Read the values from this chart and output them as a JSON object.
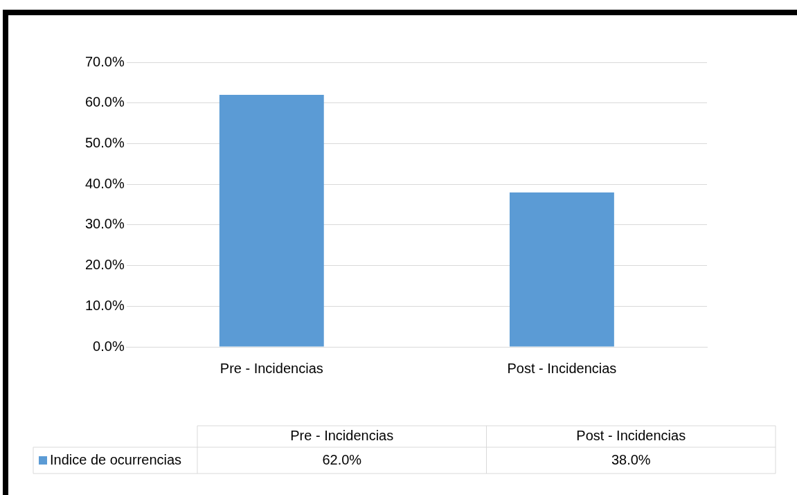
{
  "chart_data": {
    "type": "bar",
    "categories": [
      "Pre - Incidencias",
      "Post - Incidencias"
    ],
    "series": [
      {
        "name": "Indice de ocurrencias",
        "color": "#5b9bd5",
        "values": [
          62.0,
          38.0
        ],
        "value_labels": [
          "62.0%",
          "38.0%"
        ]
      }
    ],
    "ylim": [
      0,
      70
    ],
    "yticks": [
      {
        "value": 0,
        "label": "0.0%"
      },
      {
        "value": 10,
        "label": "10.0%"
      },
      {
        "value": 20,
        "label": "20.0%"
      },
      {
        "value": 30,
        "label": "30.0%"
      },
      {
        "value": 40,
        "label": "40.0%"
      },
      {
        "value": 50,
        "label": "50.0%"
      },
      {
        "value": 60,
        "label": "60.0%"
      },
      {
        "value": 70,
        "label": "70.0%"
      }
    ],
    "grid": true,
    "legend": "bottom"
  }
}
